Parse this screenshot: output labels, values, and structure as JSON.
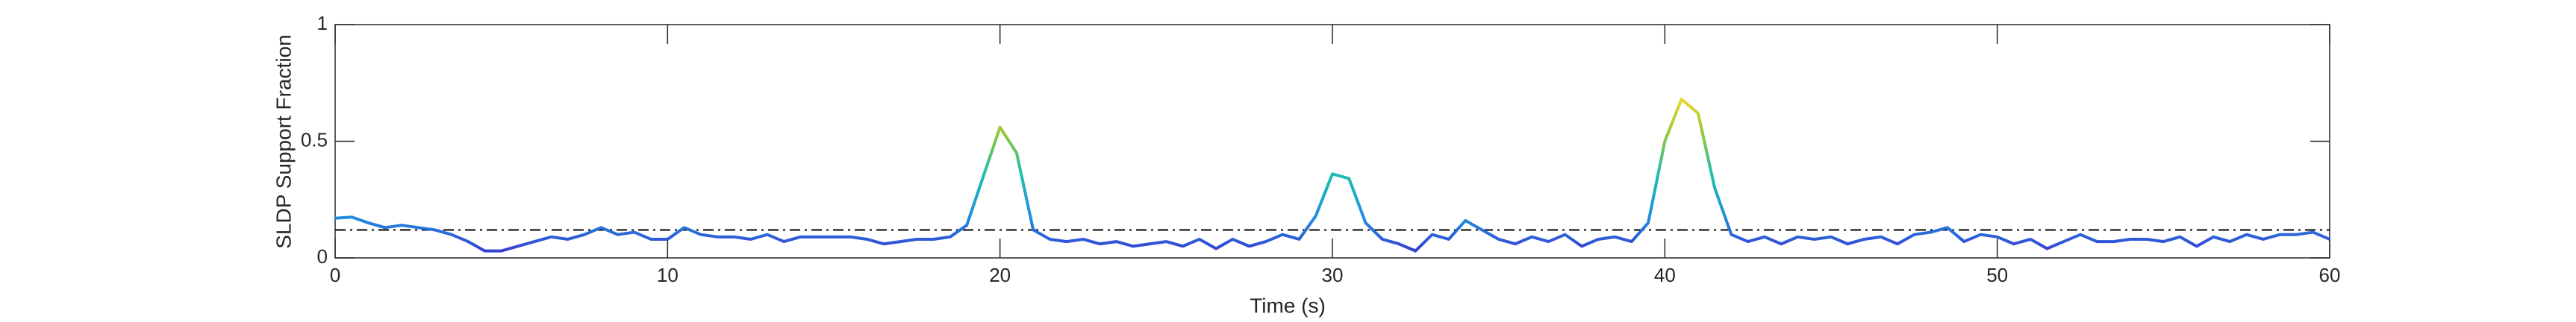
{
  "chart_data": {
    "type": "line",
    "xlabel": "Time (s)",
    "ylabel": "SLDP Support Fraction",
    "x": [
      0,
      0.5,
      1,
      1.5,
      2,
      2.5,
      3,
      3.5,
      4,
      4.5,
      5,
      5.5,
      6,
      6.5,
      7,
      7.5,
      8,
      8.5,
      9,
      9.5,
      10,
      10.5,
      11,
      11.5,
      12,
      12.5,
      13,
      13.5,
      14,
      14.5,
      15,
      15.5,
      16,
      16.5,
      17,
      17.5,
      18,
      18.5,
      19,
      19.5,
      20,
      20.5,
      21,
      21.5,
      22,
      22.5,
      23,
      23.5,
      24,
      24.5,
      25,
      25.5,
      26,
      26.5,
      27,
      27.5,
      28,
      28.5,
      29,
      29.5,
      30,
      30.5,
      31,
      31.5,
      32,
      32.5,
      33,
      33.5,
      34,
      34.5,
      35,
      35.5,
      36,
      36.5,
      37,
      37.5,
      38,
      38.5,
      39,
      39.5,
      40,
      40.5,
      41,
      41.5,
      42,
      42.5,
      43,
      43.5,
      44,
      44.5,
      45,
      45.5,
      46,
      46.5,
      47,
      47.5,
      48,
      48.5,
      49,
      49.5,
      50,
      50.5,
      51,
      51.5,
      52,
      52.5,
      53,
      53.5,
      54,
      54.5,
      55,
      55.5,
      56,
      56.5,
      57,
      57.5,
      58,
      58.5,
      59,
      59.5,
      60
    ],
    "values": [
      0.17,
      0.175,
      0.15,
      0.13,
      0.14,
      0.13,
      0.12,
      0.1,
      0.07,
      0.03,
      0.03,
      0.05,
      0.07,
      0.09,
      0.08,
      0.1,
      0.13,
      0.1,
      0.11,
      0.08,
      0.08,
      0.13,
      0.1,
      0.09,
      0.09,
      0.08,
      0.1,
      0.07,
      0.09,
      0.09,
      0.09,
      0.09,
      0.08,
      0.06,
      0.07,
      0.08,
      0.08,
      0.09,
      0.14,
      0.35,
      0.56,
      0.45,
      0.12,
      0.08,
      0.07,
      0.08,
      0.06,
      0.07,
      0.05,
      0.06,
      0.07,
      0.05,
      0.08,
      0.04,
      0.08,
      0.05,
      0.07,
      0.1,
      0.08,
      0.18,
      0.36,
      0.34,
      0.15,
      0.08,
      0.06,
      0.03,
      0.1,
      0.08,
      0.16,
      0.12,
      0.08,
      0.06,
      0.09,
      0.07,
      0.1,
      0.05,
      0.08,
      0.09,
      0.07,
      0.15,
      0.5,
      0.68,
      0.62,
      0.3,
      0.1,
      0.07,
      0.09,
      0.06,
      0.09,
      0.08,
      0.09,
      0.06,
      0.08,
      0.09,
      0.06,
      0.1,
      0.11,
      0.13,
      0.07,
      0.1,
      0.09,
      0.06,
      0.08,
      0.04,
      0.07,
      0.1,
      0.07,
      0.07,
      0.08,
      0.08,
      0.07,
      0.09,
      0.05,
      0.09,
      0.07,
      0.1,
      0.08,
      0.1,
      0.1,
      0.11,
      0.08
    ],
    "colormap": [
      "#3b2fd0",
      "#1f8fe0",
      "#1cbfb0",
      "#8fc83e",
      "#f5d82a"
    ],
    "clim": [
      0,
      0.7
    ],
    "threshold": 0.12,
    "xlim": [
      0,
      60
    ],
    "xticks": [
      0,
      10,
      20,
      30,
      40,
      50,
      60
    ],
    "ylim": [
      0,
      1
    ],
    "yticks": [
      0,
      0.5,
      1
    ]
  }
}
